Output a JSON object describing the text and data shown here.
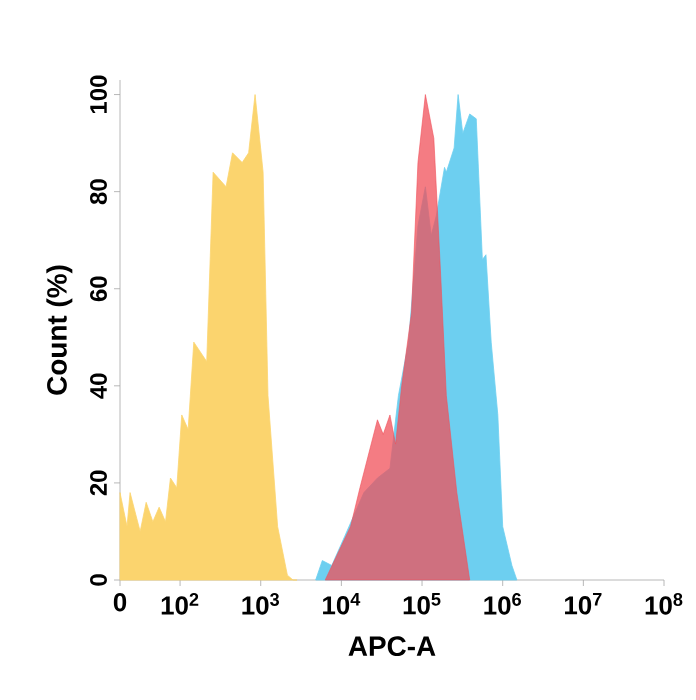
{
  "chart_data": {
    "type": "area",
    "xlabel": "APC-A",
    "ylabel": "Count  (%)",
    "log": "x",
    "xlim": [
      0,
      100000000
    ],
    "ylim": [
      0,
      103
    ],
    "xticks": [
      {
        "value": 0,
        "label": "0"
      },
      {
        "value": 100,
        "label": "10$^{2}$"
      },
      {
        "value": 1000,
        "label": "10$^{3}$"
      },
      {
        "value": 10000,
        "label": "10$^{4}$"
      },
      {
        "value": 100000,
        "label": "10$^{5}$"
      },
      {
        "value": 1000000,
        "label": "10$^{6}$"
      },
      {
        "value": 10000000,
        "label": "10$^{7}$"
      },
      {
        "value": 100000000,
        "label": "10$^{8}$"
      }
    ],
    "yticks": [
      0,
      20,
      40,
      60,
      80,
      100
    ],
    "series": [
      {
        "color": "#fbd46e",
        "x": [
          18,
          22,
          24,
          32,
          38,
          46,
          55,
          66,
          76,
          91,
          105,
          126,
          148,
          214,
          257,
          372,
          447,
          589,
          708,
          851,
          1070,
          1230,
          1620,
          2140,
          2510,
          2820
        ],
        "values": [
          18,
          11,
          18,
          10,
          16,
          12,
          15,
          12,
          21,
          19,
          34,
          31,
          49,
          45,
          84,
          81,
          88,
          86,
          88,
          100,
          84,
          38,
          11,
          1,
          0,
          0
        ]
      },
      {
        "color": "#6dcff0",
        "x": [
          4800,
          5800,
          7600,
          11000,
          19000,
          28000,
          40000,
          51000,
          68000,
          89000,
          110000,
          130000,
          150000,
          190000,
          200000,
          250000,
          280000,
          320000,
          390000,
          470000,
          560000,
          620000,
          720000,
          870000,
          1000000,
          1300000,
          1500000
        ],
        "values": [
          0,
          4,
          3,
          9,
          18,
          21,
          23,
          38,
          49,
          73,
          81,
          71,
          75,
          85,
          84,
          89,
          100,
          92,
          96,
          95,
          66,
          67,
          49,
          34,
          11,
          3,
          0
        ]
      },
      {
        "color": "#f0505a",
        "x": [
          6300,
          13000,
          17000,
          28000,
          33000,
          40000,
          47000,
          56000,
          74000,
          89000,
          110000,
          140000,
          170000,
          200000,
          270000,
          390000
        ],
        "values": [
          0,
          11,
          19,
          33,
          30,
          34,
          28,
          40,
          55,
          86,
          100,
          91,
          63,
          38,
          18,
          0
        ]
      }
    ]
  }
}
